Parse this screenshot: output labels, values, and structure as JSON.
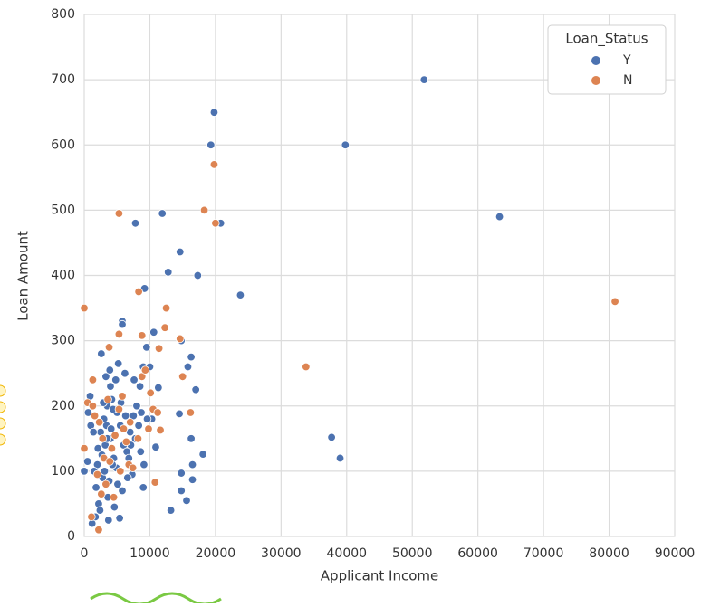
{
  "chart_data": {
    "type": "scatter",
    "x_label": "Applicant Income",
    "y_label": "Loan Amount",
    "legend_title": "Loan_Status",
    "legend_position": "upper right",
    "grid": true,
    "xlim": [
      0,
      90000
    ],
    "ylim": [
      0,
      800
    ],
    "xticks": [
      0,
      10000,
      20000,
      30000,
      40000,
      50000,
      60000,
      70000,
      80000,
      90000
    ],
    "yticks": [
      0,
      100,
      200,
      300,
      400,
      500,
      600,
      700,
      800
    ],
    "series": [
      {
        "name": "Y",
        "color": "#4c72b0",
        "x": [
          51800,
          19800,
          19300,
          39800,
          63300,
          7800,
          11900,
          20800,
          14600,
          12800,
          17300,
          23800,
          9200,
          5800,
          5800,
          10600,
          14800,
          16300,
          15800,
          16300,
          17000,
          37700,
          39000,
          18100,
          16500,
          16500,
          15600,
          13200,
          14800,
          14800,
          14500,
          11300,
          10900,
          9000,
          2500,
          3000,
          3500,
          4000,
          4500,
          2000,
          1500,
          3200,
          2800,
          3600,
          2200,
          1800,
          4200,
          5000,
          5500,
          6000,
          6500,
          7000,
          7500,
          8000,
          8500,
          9000,
          9500,
          6200,
          5200,
          4800,
          3900,
          2600,
          3300,
          4400,
          1000,
          0,
          500,
          1200,
          1700,
          2400,
          3700,
          4600,
          5400,
          5800,
          6800,
          7300,
          8300,
          9100,
          10000,
          10300,
          900,
          2900,
          3400,
          4100,
          4900,
          5600,
          6300,
          7100,
          7800,
          8700,
          9600,
          2100,
          2700,
          3100,
          3800,
          5100,
          6600,
          4300,
          1400,
          600,
          4000,
          7600,
          8600,
          3500
        ],
        "values": [
          700,
          650,
          600,
          600,
          490,
          480,
          495,
          480,
          436,
          405,
          400,
          370,
          380,
          330,
          325,
          313,
          300,
          275,
          260,
          150,
          225,
          152,
          120,
          126,
          110,
          87,
          55,
          40,
          70,
          97,
          188,
          228,
          137,
          75,
          160,
          180,
          200,
          150,
          120,
          110,
          100,
          140,
          90,
          60,
          50,
          75,
          210,
          190,
          170,
          140,
          130,
          160,
          185,
          200,
          230,
          260,
          290,
          250,
          265,
          240,
          255,
          280,
          245,
          195,
          170,
          100,
          115,
          20,
          30,
          40,
          25,
          45,
          28,
          70,
          120,
          95,
          170,
          110,
          260,
          180,
          215,
          205,
          170,
          165,
          105,
          205,
          185,
          140,
          150,
          190,
          180,
          135,
          125,
          100,
          85,
          80,
          90,
          110,
          160,
          190,
          230,
          240,
          130,
          150
        ]
      },
      {
        "name": "N",
        "color": "#dd8452",
        "x": [
          80900,
          33800,
          19800,
          18300,
          20000,
          5300,
          8300,
          12500,
          12300,
          14600,
          15000,
          16200,
          10500,
          11600,
          10800,
          0,
          1300,
          2200,
          11400,
          8800,
          5300,
          3800,
          1600,
          2300,
          2000,
          2600,
          3000,
          3600,
          4200,
          4700,
          5300,
          6000,
          6800,
          7400,
          8200,
          8800,
          9300,
          10100,
          11200,
          500,
          1100,
          2800,
          3300,
          4500,
          5800,
          7000,
          9800,
          0,
          1300,
          3900,
          5500,
          6400
        ],
        "values": [
          360,
          260,
          570,
          500,
          480,
          495,
          375,
          350,
          320,
          303,
          245,
          190,
          195,
          163,
          83,
          350,
          240,
          10,
          288,
          308,
          310,
          290,
          185,
          175,
          95,
          65,
          120,
          210,
          135,
          155,
          195,
          165,
          110,
          105,
          150,
          245,
          255,
          220,
          190,
          205,
          30,
          150,
          80,
          60,
          215,
          175,
          165,
          135,
          200,
          115,
          100,
          145
        ]
      }
    ]
  }
}
